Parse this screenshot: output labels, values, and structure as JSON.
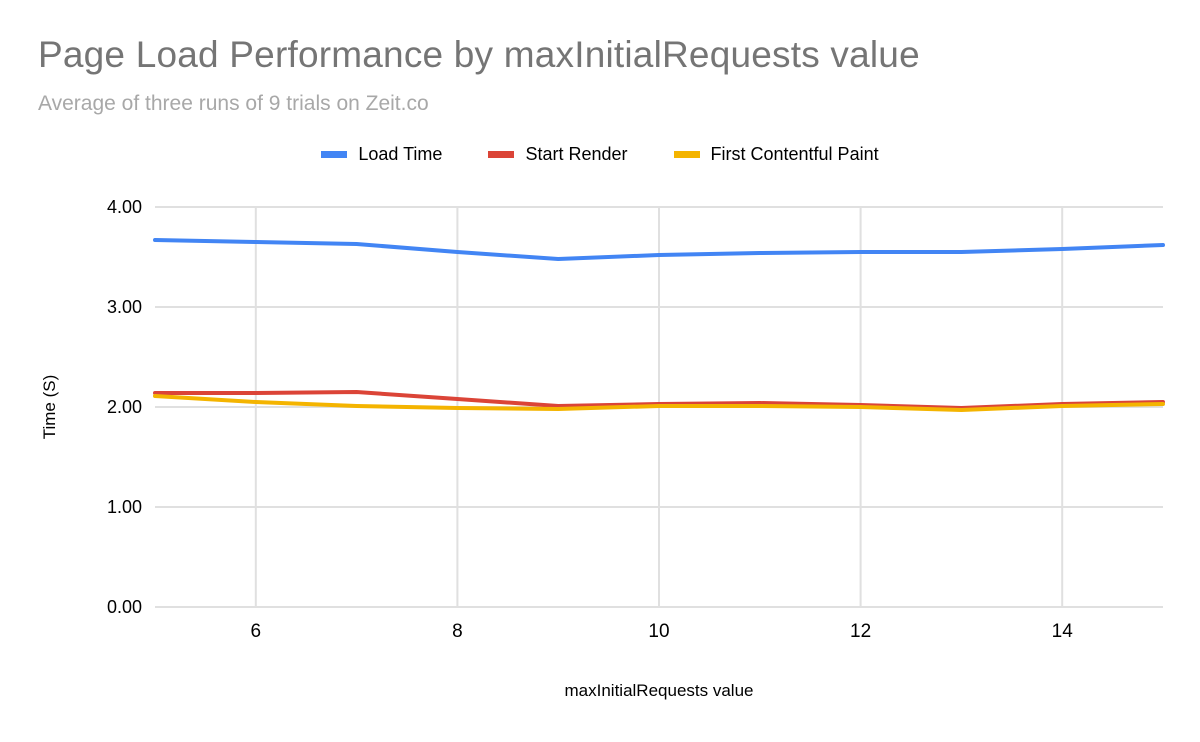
{
  "chart_data": {
    "type": "line",
    "title": "Page Load Performance by maxInitialRequests value",
    "subtitle": "Average of three runs of 9 trials on Zeit.co",
    "xlabel": "maxInitialRequests value",
    "ylabel": "Time (S)",
    "x": [
      5,
      6,
      7,
      8,
      9,
      10,
      11,
      12,
      13,
      14,
      15
    ],
    "xlim": [
      5,
      15
    ],
    "ylim": [
      0,
      4
    ],
    "xticks": [
      6,
      8,
      10,
      12,
      14
    ],
    "yticks": [
      0,
      1,
      2,
      3,
      4
    ],
    "grid": true,
    "legend_position": "top",
    "gridline_color": "#e0e0e0",
    "series": [
      {
        "name": "Load Time",
        "color": "#4285F4",
        "values": [
          3.67,
          3.65,
          3.63,
          3.55,
          3.48,
          3.52,
          3.54,
          3.55,
          3.55,
          3.58,
          3.62
        ]
      },
      {
        "name": "Start Render",
        "color": "#DB4437",
        "values": [
          2.14,
          2.14,
          2.15,
          2.08,
          2.01,
          2.03,
          2.04,
          2.02,
          1.99,
          2.03,
          2.05
        ]
      },
      {
        "name": "First Contentful Paint",
        "color": "#F4B400",
        "values": [
          2.11,
          2.05,
          2.01,
          1.99,
          1.98,
          2.01,
          2.01,
          2.0,
          1.97,
          2.01,
          2.03
        ]
      }
    ]
  }
}
